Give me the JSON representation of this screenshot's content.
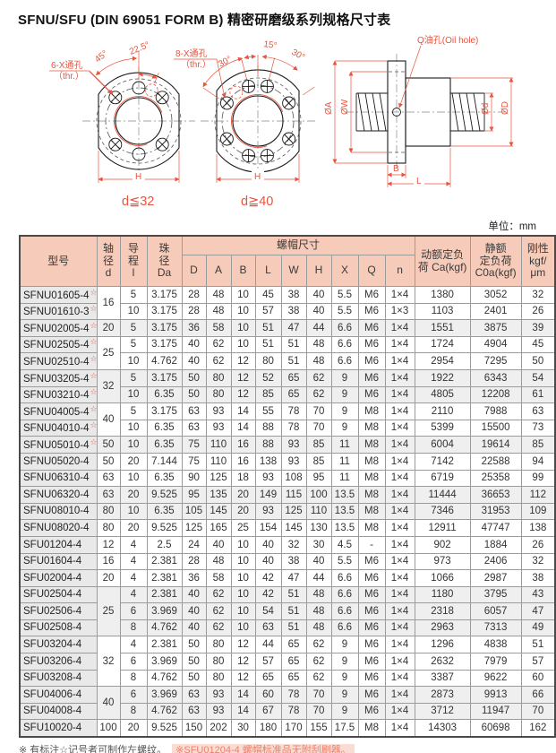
{
  "title": "SFNU/SFU (DIN 69051 FORM B) 精密研磨级系列规格尺寸表",
  "unit_note": "单位：mm",
  "drawing": {
    "left_view": {
      "angle_45": "45°",
      "angle_225": "22.5°",
      "holes_line1": "6-X通孔",
      "holes_line2": "（thr.）",
      "h_label": "H",
      "caption": "d≦32"
    },
    "mid_view": {
      "angle_30a": "30°",
      "angle_15": "15°",
      "angle_30b": "30°",
      "holes_line1": "8-X通孔",
      "holes_line2": "（thr.）",
      "h_label": "H",
      "caption": "d≧40"
    },
    "section_view": {
      "oil_label": "Q油孔(Oil hole)",
      "dim_oa": "ØA",
      "dim_ow": "ØW",
      "dim_od_small": "Ød",
      "dim_od": "ØD",
      "dim_b": "B",
      "dim_l": "L"
    }
  },
  "table": {
    "star_glyph": "☆",
    "headers": {
      "model": "型号",
      "shaft": "轴\n径\nd",
      "lead": "导\n程\nl",
      "ball": "珠\n径\nDa",
      "nut_dims": "螺帽尺寸",
      "sub": [
        "D",
        "A",
        "B",
        "L",
        "W",
        "H",
        "X",
        "Q",
        "n"
      ],
      "ca": "动额定负\n荷 Ca(kgf)",
      "c0a": "静额\n定负荷\nC0a(kgf)",
      "rigidity": "刚性\nkgf/\nμm"
    },
    "rows": [
      {
        "model": "SFNU01605-4",
        "star": true,
        "d": "16",
        "d_rowspan": 2,
        "shaded": false,
        "cells": [
          "5",
          "3.175",
          "28",
          "48",
          "10",
          "45",
          "38",
          "40",
          "5.5",
          "M6",
          "1×4",
          "1380",
          "3052",
          "32"
        ]
      },
      {
        "model": "SFNU01610-3",
        "star": true,
        "shaded": false,
        "cells": [
          "10",
          "3.175",
          "28",
          "48",
          "10",
          "57",
          "38",
          "40",
          "5.5",
          "M6",
          "1×3",
          "1103",
          "2401",
          "26"
        ]
      },
      {
        "model": "SFNU02005-4",
        "star": true,
        "d": "20",
        "shaded": true,
        "cells": [
          "5",
          "3.175",
          "36",
          "58",
          "10",
          "51",
          "47",
          "44",
          "6.6",
          "M6",
          "1×4",
          "1551",
          "3875",
          "39"
        ]
      },
      {
        "model": "SFNU02505-4",
        "star": true,
        "d": "25",
        "d_rowspan": 2,
        "shaded": false,
        "cells": [
          "5",
          "3.175",
          "40",
          "62",
          "10",
          "51",
          "51",
          "48",
          "6.6",
          "M6",
          "1×4",
          "1724",
          "4904",
          "45"
        ]
      },
      {
        "model": "SFNU02510-4",
        "star": true,
        "shaded": false,
        "cells": [
          "10",
          "4.762",
          "40",
          "62",
          "12",
          "80",
          "51",
          "48",
          "6.6",
          "M6",
          "1×4",
          "2954",
          "7295",
          "50"
        ]
      },
      {
        "model": "SFNU03205-4",
        "star": true,
        "d": "32",
        "d_rowspan": 2,
        "shaded": true,
        "cells": [
          "5",
          "3.175",
          "50",
          "80",
          "12",
          "52",
          "65",
          "62",
          "9",
          "M6",
          "1×4",
          "1922",
          "6343",
          "54"
        ]
      },
      {
        "model": "SFNU03210-4",
        "star": true,
        "shaded": true,
        "cells": [
          "10",
          "6.35",
          "50",
          "80",
          "12",
          "85",
          "65",
          "62",
          "9",
          "M6",
          "1×4",
          "4805",
          "12208",
          "61"
        ]
      },
      {
        "model": "SFNU04005-4",
        "star": true,
        "d": "40",
        "d_rowspan": 2,
        "shaded": false,
        "cells": [
          "5",
          "3.175",
          "63",
          "93",
          "14",
          "55",
          "78",
          "70",
          "9",
          "M8",
          "1×4",
          "2110",
          "7988",
          "63"
        ]
      },
      {
        "model": "SFNU04010-4",
        "star": true,
        "shaded": false,
        "cells": [
          "10",
          "6.35",
          "63",
          "93",
          "14",
          "88",
          "78",
          "70",
          "9",
          "M8",
          "1×4",
          "5399",
          "15500",
          "73"
        ]
      },
      {
        "model": "SFNU05010-4",
        "star": true,
        "d": "50",
        "shaded": true,
        "cells": [
          "10",
          "6.35",
          "75",
          "110",
          "16",
          "88",
          "93",
          "85",
          "11",
          "M8",
          "1×4",
          "6004",
          "19614",
          "85"
        ]
      },
      {
        "model": "SFNU05020-4",
        "star": false,
        "d": "50",
        "shaded": false,
        "cells": [
          "20",
          "7.144",
          "75",
          "110",
          "16",
          "138",
          "93",
          "85",
          "11",
          "M8",
          "1×4",
          "7142",
          "22588",
          "94"
        ]
      },
      {
        "model": "SFNU06310-4",
        "star": false,
        "d": "63",
        "shaded": false,
        "cells": [
          "10",
          "6.35",
          "90",
          "125",
          "18",
          "93",
          "108",
          "95",
          "11",
          "M8",
          "1×4",
          "6719",
          "25358",
          "99"
        ]
      },
      {
        "model": "SFNU06320-4",
        "star": false,
        "d": "63",
        "shaded": true,
        "cells": [
          "20",
          "9.525",
          "95",
          "135",
          "20",
          "149",
          "115",
          "100",
          "13.5",
          "M8",
          "1×4",
          "11444",
          "36653",
          "112"
        ]
      },
      {
        "model": "SFNU08010-4",
        "star": false,
        "d": "80",
        "shaded": true,
        "cells": [
          "10",
          "6.35",
          "105",
          "145",
          "20",
          "93",
          "125",
          "110",
          "13.5",
          "M8",
          "1×4",
          "7346",
          "31953",
          "109"
        ]
      },
      {
        "model": "SFNU08020-4",
        "star": false,
        "d": "80",
        "shaded": false,
        "cells": [
          "20",
          "9.525",
          "125",
          "165",
          "25",
          "154",
          "145",
          "130",
          "13.5",
          "M8",
          "1×4",
          "12911",
          "47747",
          "138"
        ]
      },
      {
        "model": "SFU01204-4",
        "star": false,
        "d": "12",
        "shaded": false,
        "cells": [
          "4",
          "2.5",
          "24",
          "40",
          "10",
          "40",
          "32",
          "30",
          "4.5",
          "-",
          "1×4",
          "902",
          "1884",
          "26"
        ]
      },
      {
        "model": "SFU01604-4",
        "star": false,
        "d": "16",
        "shaded": false,
        "cells": [
          "4",
          "2.381",
          "28",
          "48",
          "10",
          "40",
          "38",
          "40",
          "5.5",
          "M6",
          "1×4",
          "973",
          "2406",
          "32"
        ]
      },
      {
        "model": "SFU02004-4",
        "star": false,
        "d": "20",
        "shaded": false,
        "cells": [
          "4",
          "2.381",
          "36",
          "58",
          "10",
          "42",
          "47",
          "44",
          "6.6",
          "M6",
          "1×4",
          "1066",
          "2987",
          "38"
        ]
      },
      {
        "model": "SFU02504-4",
        "star": false,
        "d": "25",
        "d_rowspan": 3,
        "shaded": true,
        "cells": [
          "4",
          "2.381",
          "40",
          "62",
          "10",
          "42",
          "51",
          "48",
          "6.6",
          "M6",
          "1×4",
          "1180",
          "3795",
          "43"
        ]
      },
      {
        "model": "SFU02506-4",
        "star": false,
        "shaded": true,
        "cells": [
          "6",
          "3.969",
          "40",
          "62",
          "10",
          "54",
          "51",
          "48",
          "6.6",
          "M6",
          "1×4",
          "2318",
          "6057",
          "47"
        ]
      },
      {
        "model": "SFU02508-4",
        "star": false,
        "shaded": true,
        "cells": [
          "8",
          "4.762",
          "40",
          "62",
          "10",
          "63",
          "51",
          "48",
          "6.6",
          "M6",
          "1×4",
          "2963",
          "7313",
          "49"
        ]
      },
      {
        "model": "SFU03204-4",
        "star": false,
        "d": "32",
        "d_rowspan": 3,
        "shaded": false,
        "cells": [
          "4",
          "2.381",
          "50",
          "80",
          "12",
          "44",
          "65",
          "62",
          "9",
          "M6",
          "1×4",
          "1296",
          "4838",
          "51"
        ]
      },
      {
        "model": "SFU03206-4",
        "star": false,
        "shaded": false,
        "cells": [
          "6",
          "3.969",
          "50",
          "80",
          "12",
          "57",
          "65",
          "62",
          "9",
          "M6",
          "1×4",
          "2632",
          "7979",
          "57"
        ]
      },
      {
        "model": "SFU03208-4",
        "star": false,
        "shaded": false,
        "cells": [
          "8",
          "4.762",
          "50",
          "80",
          "12",
          "65",
          "65",
          "62",
          "9",
          "M6",
          "1×4",
          "3387",
          "9622",
          "60"
        ]
      },
      {
        "model": "SFU04006-4",
        "star": false,
        "d": "40",
        "d_rowspan": 2,
        "shaded": true,
        "cells": [
          "6",
          "3.969",
          "63",
          "93",
          "14",
          "60",
          "78",
          "70",
          "9",
          "M6",
          "1×4",
          "2873",
          "9913",
          "66"
        ]
      },
      {
        "model": "SFU04008-4",
        "star": false,
        "shaded": true,
        "cells": [
          "8",
          "4.762",
          "63",
          "93",
          "14",
          "67",
          "78",
          "70",
          "9",
          "M6",
          "1×4",
          "3712",
          "11947",
          "70"
        ]
      },
      {
        "model": "SFU10020-4",
        "star": false,
        "d": "100",
        "shaded": false,
        "cells": [
          "20",
          "9.525",
          "150",
          "202",
          "30",
          "180",
          "170",
          "155",
          "17.5",
          "M8",
          "1×4",
          "14303",
          "60698",
          "162"
        ]
      }
    ]
  },
  "notes": {
    "left_thread": "※ 有标注☆记号者可制作左螺纹。",
    "standard": "※SFU01204-4 螺帽标准品无附刮刷器。"
  }
}
